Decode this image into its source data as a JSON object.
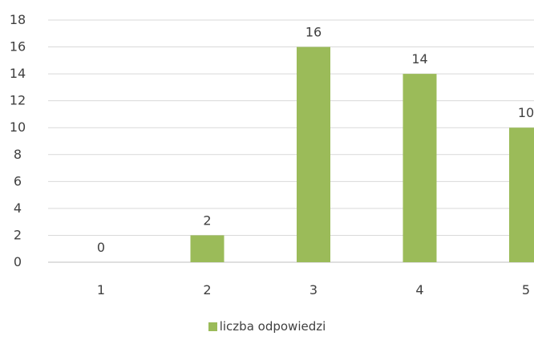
{
  "chart_data": {
    "type": "bar",
    "categories": [
      "1",
      "2",
      "3",
      "4",
      "5"
    ],
    "series": [
      {
        "name": "liczba odpowiedzi",
        "values": [
          0,
          2,
          16,
          14,
          10
        ],
        "color": "#9bbb59"
      }
    ],
    "ylim": [
      0,
      18
    ],
    "yticks": [
      0,
      2,
      4,
      6,
      8,
      10,
      12,
      14,
      16,
      18
    ],
    "grid": true,
    "legend_position": "bottom",
    "data_labels": true
  }
}
